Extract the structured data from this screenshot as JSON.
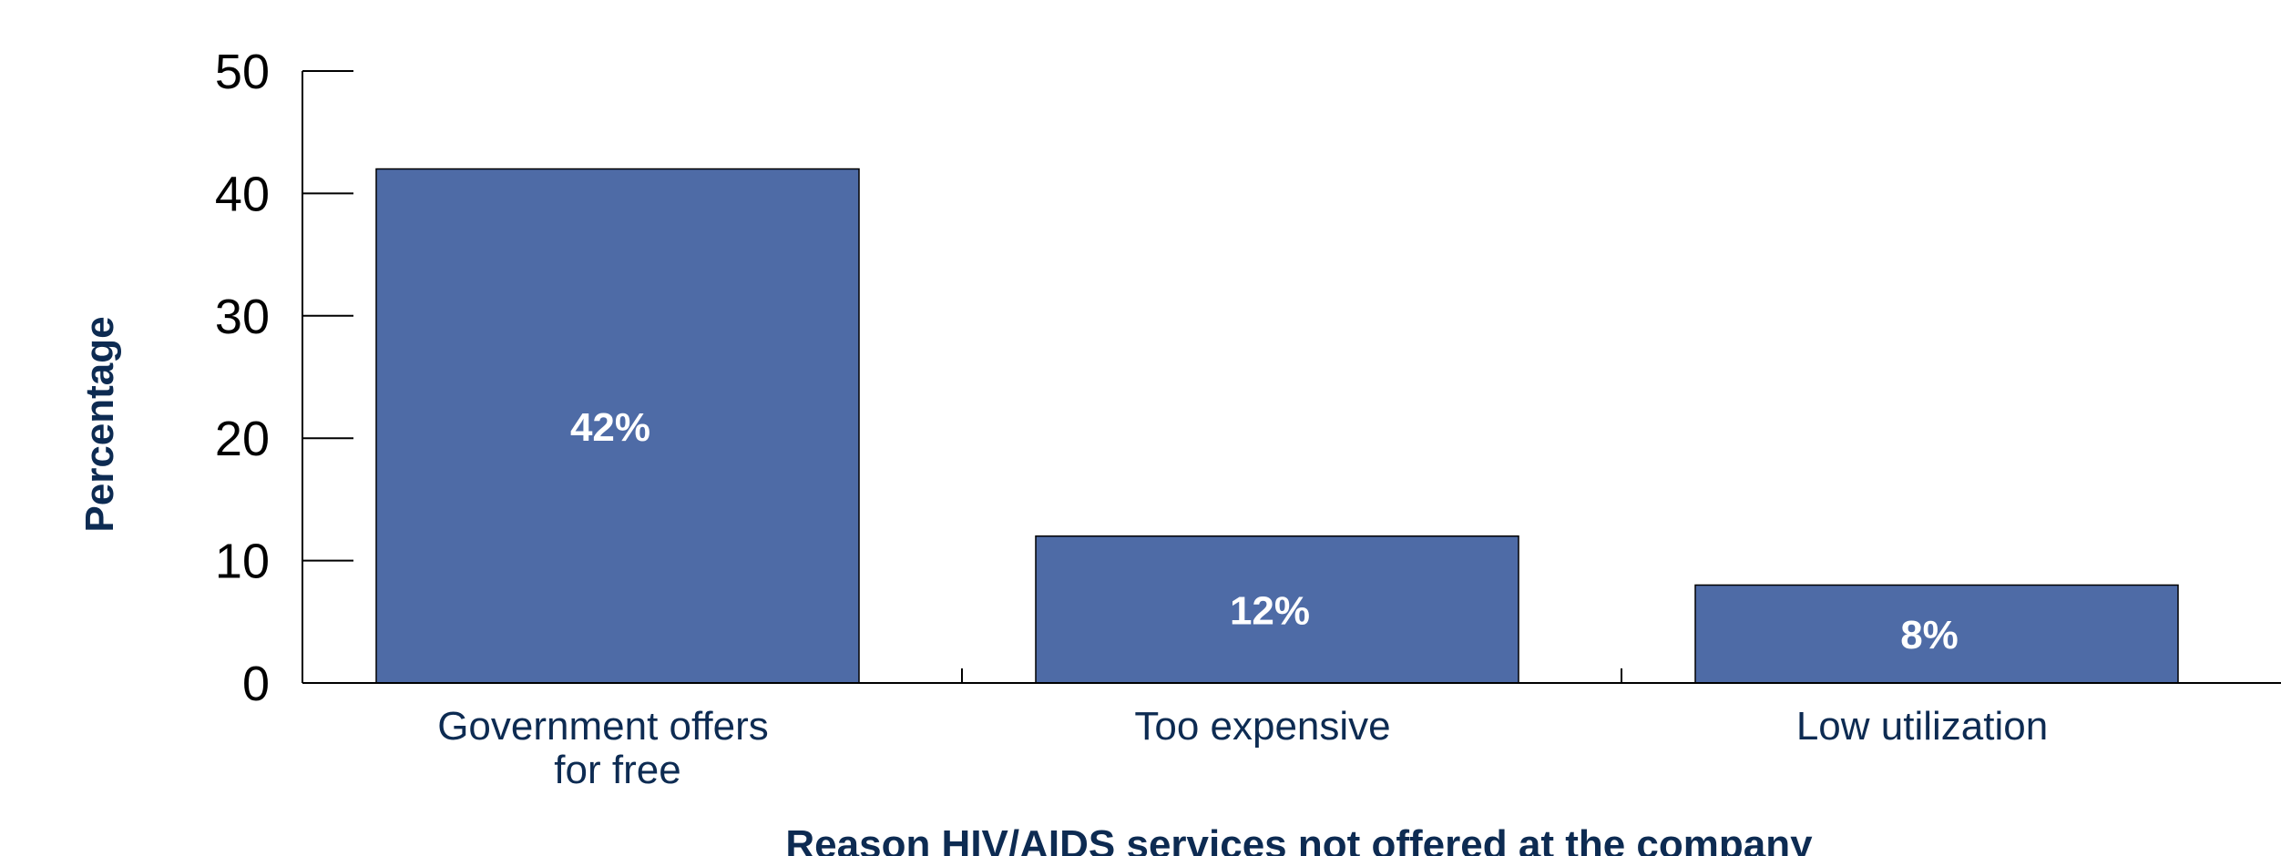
{
  "chart_data": {
    "type": "bar",
    "categories": [
      [
        "Government offers",
        "for free"
      ],
      [
        "Too expensive"
      ],
      [
        "Low utilization"
      ]
    ],
    "values": [
      42,
      12,
      8
    ],
    "data_labels": [
      "42%",
      "12%",
      "8%"
    ],
    "ylabel": "Percentage",
    "xlabel": "Reason HIV/AIDS services not offered at the company",
    "ylim": [
      0,
      50
    ],
    "yticks": [
      0,
      10,
      20,
      30,
      40,
      50
    ],
    "grid": false,
    "legend": "none",
    "bar_color": "#4e6ba6"
  }
}
